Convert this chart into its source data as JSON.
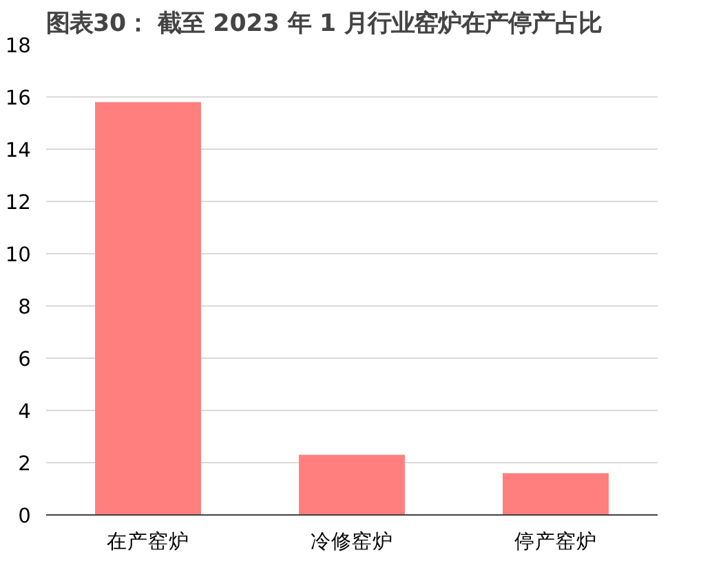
{
  "chart_data": {
    "type": "bar",
    "title": "图表30：  截至 2023 年 1 月行业窑炉在产停产占比",
    "categories": [
      "在产窑炉",
      "冷修窑炉",
      "停产窑炉"
    ],
    "values": [
      15.8,
      2.3,
      1.6
    ],
    "color": "#ff7f7f",
    "ylim": [
      0,
      18
    ],
    "yticks": [
      0,
      2,
      4,
      6,
      8,
      10,
      12,
      14,
      16,
      18
    ],
    "grid": "y"
  }
}
